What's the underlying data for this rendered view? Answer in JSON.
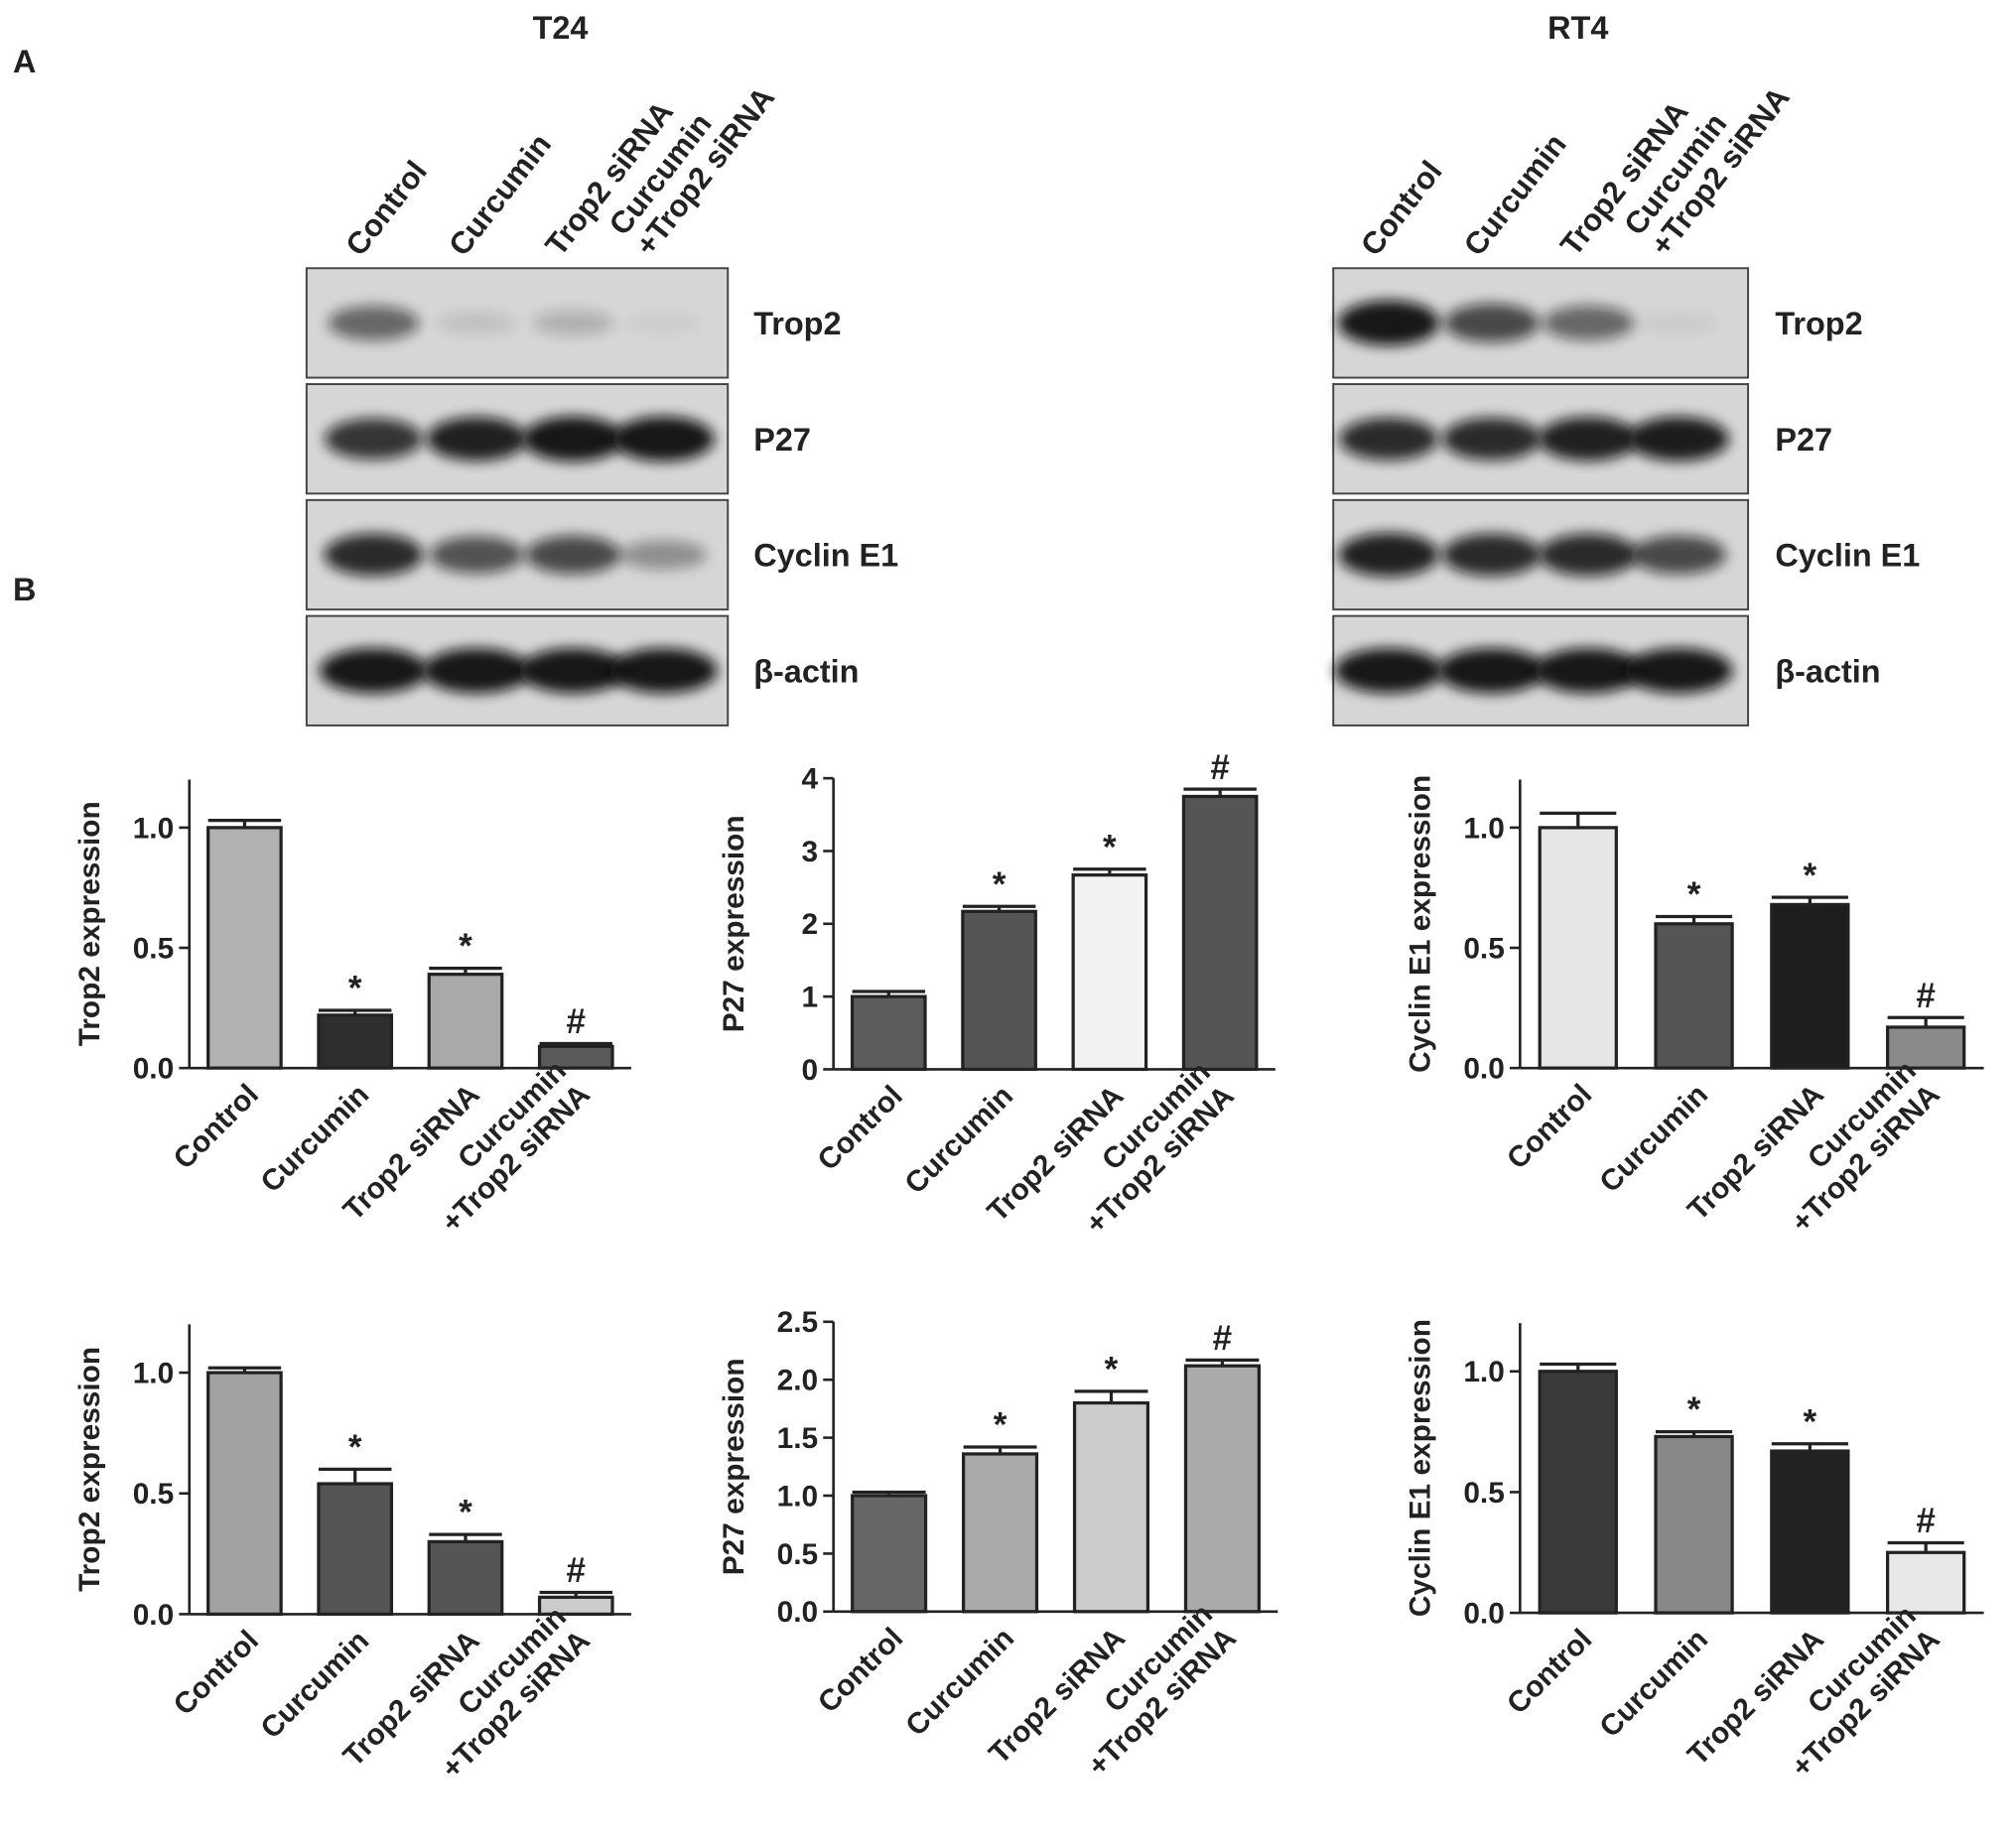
{
  "panels": [
    "A",
    "B"
  ],
  "blots": [
    {
      "title": "T24",
      "lanes": [
        "Control",
        "Curcumin",
        "Trop2 siRNA",
        [
          "Curcumin",
          "+Trop2 siRNA"
        ]
      ],
      "bands": [
        "Trop2",
        "P27",
        "Cyclin E1",
        "β-actin"
      ]
    },
    {
      "title": "RT4",
      "lanes": [
        "Control",
        "Curcumin",
        "Trop2 siRNA",
        [
          "Curcumin",
          "+Trop2 siRNA"
        ]
      ],
      "bands": [
        "Trop2",
        "P27",
        "Cyclin E1",
        "β-actin"
      ]
    }
  ],
  "chart_data": [
    {
      "type": "bar",
      "ylabel": "Trop2  expression",
      "categories": [
        "Control",
        "Curcumin",
        "Trop2 siRNA",
        [
          "Curcumin",
          "+Trop2 siRNA"
        ]
      ],
      "values": [
        1.0,
        0.22,
        0.39,
        0.09
      ],
      "errors": [
        0.03,
        0.02,
        0.025,
        0.012
      ],
      "annotations": [
        null,
        "*",
        "*",
        "#"
      ],
      "colors": [
        "#b2b2b2",
        "#2e2e2e",
        "#a9a9a9",
        "#5a5a5a"
      ],
      "ylim": [
        0,
        1.2
      ],
      "yticks": [
        {
          "value": 0,
          "label": "0.0"
        },
        {
          "value": 0.5,
          "label": "0.5"
        },
        {
          "value": 1,
          "label": "1.0"
        }
      ]
    },
    {
      "type": "bar",
      "ylabel": "P27  expression",
      "categories": [
        "Control",
        "Curcumin",
        "Trop2 siRNA",
        [
          "Curcumin",
          "+Trop2 siRNA"
        ]
      ],
      "values": [
        1.0,
        2.17,
        2.67,
        3.75
      ],
      "errors": [
        0.07,
        0.07,
        0.08,
        0.1
      ],
      "annotations": [
        null,
        "*",
        "*",
        "#"
      ],
      "colors": [
        "#5c5c5c",
        "#555555",
        "#f2f2f2",
        "#555555"
      ],
      "ylim": [
        0,
        4
      ],
      "yticks": [
        0,
        1,
        2,
        3,
        4
      ]
    },
    {
      "type": "bar",
      "ylabel": "Cyclin E1 expression",
      "categories": [
        "Control",
        "Curcumin",
        "Trop2 siRNA",
        [
          "Curcumin",
          "+Trop2 siRNA"
        ]
      ],
      "values": [
        1.0,
        0.6,
        0.68,
        0.17
      ],
      "errors": [
        0.06,
        0.03,
        0.03,
        0.04
      ],
      "annotations": [
        null,
        "*",
        "*",
        "#"
      ],
      "colors": [
        "#e6e6e6",
        "#555555",
        "#1e1e1e",
        "#8a8a8a"
      ],
      "ylim": [
        0,
        1.2
      ],
      "yticks": [
        {
          "value": 0,
          "label": "0.0"
        },
        {
          "value": 0.5,
          "label": "0.5"
        },
        {
          "value": 1,
          "label": "1.0"
        }
      ]
    },
    {
      "type": "bar",
      "ylabel": "Trop2  expression",
      "categories": [
        "Control",
        "Curcumin",
        "Trop2 siRNA",
        [
          "Curcumin",
          "+Trop2 siRNA"
        ]
      ],
      "values": [
        1.0,
        0.54,
        0.3,
        0.07
      ],
      "errors": [
        0.02,
        0.06,
        0.03,
        0.02
      ],
      "annotations": [
        null,
        "*",
        "*",
        "#"
      ],
      "colors": [
        "#a2a2a2",
        "#555555",
        "#555555",
        "#cccccc"
      ],
      "ylim": [
        0,
        1.2
      ],
      "yticks": [
        {
          "value": 0,
          "label": "0.0"
        },
        {
          "value": 0.5,
          "label": "0.5"
        },
        {
          "value": 1,
          "label": "1.0"
        }
      ]
    },
    {
      "type": "bar",
      "ylabel": "P27  expression",
      "categories": [
        "Control",
        "Curcumin",
        "Trop2 siRNA",
        [
          "Curcumin",
          "+Trop2 siRNA"
        ]
      ],
      "values": [
        1.0,
        1.36,
        1.8,
        2.12
      ],
      "errors": [
        0.03,
        0.06,
        0.1,
        0.05
      ],
      "annotations": [
        null,
        "*",
        "*",
        "#"
      ],
      "colors": [
        "#666666",
        "#aaaaaa",
        "#cccccc",
        "#aaaaaa"
      ],
      "ylim": [
        0,
        2.5
      ],
      "yticks": [
        {
          "value": 0,
          "label": "0.0"
        },
        {
          "value": 0.5,
          "label": "0.5"
        },
        {
          "value": 1,
          "label": "1.0"
        },
        {
          "value": 1.5,
          "label": "1.5"
        },
        {
          "value": 2,
          "label": "2.0"
        },
        {
          "value": 2.5,
          "label": "2.5"
        }
      ]
    },
    {
      "type": "bar",
      "ylabel": "Cyclin E1 expression",
      "categories": [
        "Control",
        "Curcumin",
        "Trop2 siRNA",
        [
          "Curcumin",
          "+Trop2 siRNA"
        ]
      ],
      "values": [
        1.0,
        0.73,
        0.67,
        0.25
      ],
      "errors": [
        0.03,
        0.02,
        0.03,
        0.04
      ],
      "annotations": [
        null,
        "*",
        "*",
        "#"
      ],
      "colors": [
        "#3a3a3a",
        "#888888",
        "#222222",
        "#e8e8e8"
      ],
      "ylim": [
        0,
        1.2
      ],
      "yticks": [
        {
          "value": 0,
          "label": "0.0"
        },
        {
          "value": 0.5,
          "label": "0.5"
        },
        {
          "value": 1,
          "label": "1.0"
        }
      ]
    }
  ]
}
